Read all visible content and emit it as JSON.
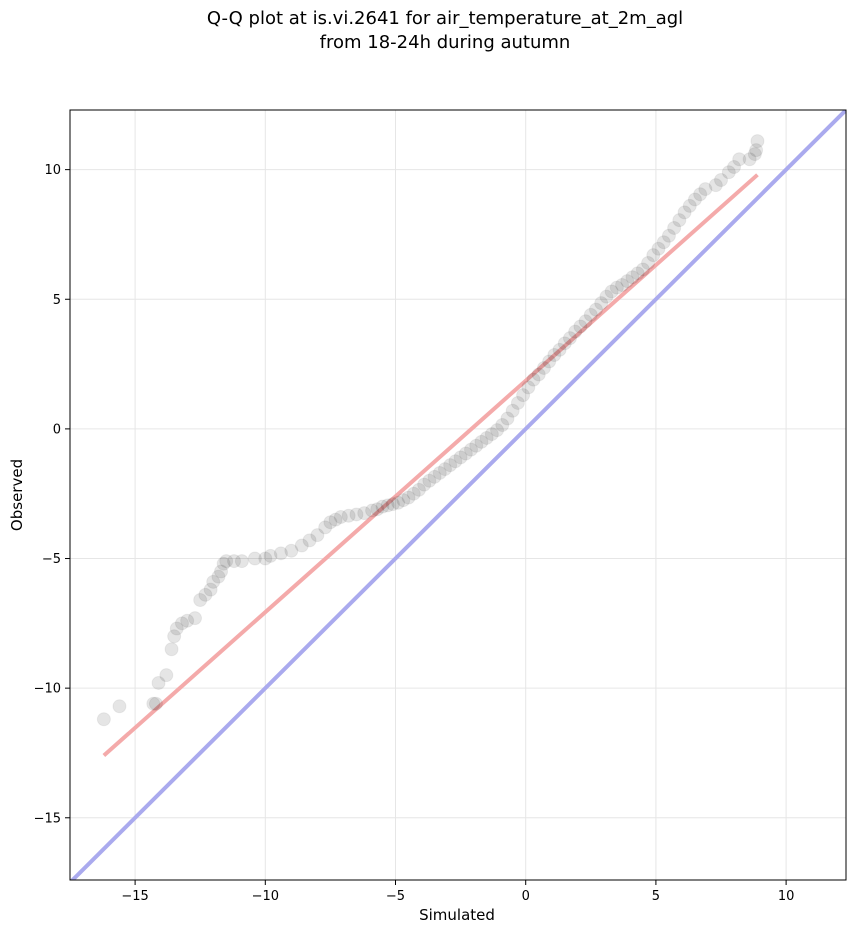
{
  "chart_data": {
    "type": "scatter",
    "title": "Q-Q plot at is.vi.2641 for air_temperature_at_2m_agl",
    "subtitle": "from 18-24h during autumn",
    "xlabel": "Simulated",
    "ylabel": "Observed",
    "xlim": [
      -17.5,
      12.3
    ],
    "ylim": [
      -17.4,
      12.3
    ],
    "xticks": [
      -15,
      -10,
      -5,
      0,
      5,
      10
    ],
    "xtick_labels": [
      "−15",
      "−10",
      "−5",
      "0",
      "5",
      "10"
    ],
    "yticks": [
      -15,
      -10,
      -5,
      0,
      5,
      10
    ],
    "ytick_labels": [
      "−15",
      "−10",
      "−5",
      "0",
      "5",
      "10"
    ],
    "grid": true,
    "point_color": "#000000",
    "point_alpha": 0.1,
    "quantile_points": [
      [
        -16.2,
        -11.2
      ],
      [
        -15.6,
        -10.7
      ],
      [
        -14.3,
        -10.6
      ],
      [
        -14.2,
        -10.6
      ],
      [
        -14.1,
        -9.8
      ],
      [
        -13.8,
        -9.5
      ],
      [
        -13.6,
        -8.5
      ],
      [
        -13.5,
        -8.0
      ],
      [
        -13.4,
        -7.7
      ],
      [
        -13.2,
        -7.5
      ],
      [
        -13.0,
        -7.4
      ],
      [
        -12.7,
        -7.3
      ],
      [
        -12.5,
        -6.6
      ],
      [
        -12.3,
        -6.4
      ],
      [
        -12.1,
        -6.2
      ],
      [
        -12.0,
        -5.9
      ],
      [
        -11.8,
        -5.7
      ],
      [
        -11.7,
        -5.5
      ],
      [
        -11.6,
        -5.2
      ],
      [
        -11.5,
        -5.1
      ],
      [
        -11.2,
        -5.1
      ],
      [
        -10.9,
        -5.1
      ],
      [
        -10.4,
        -5.0
      ],
      [
        -10.0,
        -5.0
      ],
      [
        -9.8,
        -4.9
      ],
      [
        -9.4,
        -4.8
      ],
      [
        -9.0,
        -4.7
      ],
      [
        -8.6,
        -4.5
      ],
      [
        -8.3,
        -4.3
      ],
      [
        -8.0,
        -4.1
      ],
      [
        -7.7,
        -3.8
      ],
      [
        -7.5,
        -3.6
      ],
      [
        -7.3,
        -3.5
      ],
      [
        -7.1,
        -3.4
      ],
      [
        -6.8,
        -3.35
      ],
      [
        -6.5,
        -3.3
      ],
      [
        -6.2,
        -3.25
      ],
      [
        -5.9,
        -3.15
      ],
      [
        -5.7,
        -3.1
      ],
      [
        -5.5,
        -3.0
      ],
      [
        -5.3,
        -2.95
      ],
      [
        -5.1,
        -2.9
      ],
      [
        -4.9,
        -2.85
      ],
      [
        -4.7,
        -2.75
      ],
      [
        -4.5,
        -2.65
      ],
      [
        -4.3,
        -2.5
      ],
      [
        -4.1,
        -2.35
      ],
      [
        -3.9,
        -2.15
      ],
      [
        -3.7,
        -2.0
      ],
      [
        -3.5,
        -1.85
      ],
      [
        -3.3,
        -1.7
      ],
      [
        -3.1,
        -1.55
      ],
      [
        -2.9,
        -1.4
      ],
      [
        -2.7,
        -1.25
      ],
      [
        -2.5,
        -1.1
      ],
      [
        -2.3,
        -0.95
      ],
      [
        -2.1,
        -0.8
      ],
      [
        -1.9,
        -0.65
      ],
      [
        -1.7,
        -0.5
      ],
      [
        -1.5,
        -0.35
      ],
      [
        -1.3,
        -0.2
      ],
      [
        -1.1,
        -0.05
      ],
      [
        -0.9,
        0.15
      ],
      [
        -0.7,
        0.4
      ],
      [
        -0.5,
        0.7
      ],
      [
        -0.3,
        1.0
      ],
      [
        -0.1,
        1.3
      ],
      [
        0.1,
        1.6
      ],
      [
        0.3,
        1.9
      ],
      [
        0.5,
        2.1
      ],
      [
        0.7,
        2.35
      ],
      [
        0.9,
        2.6
      ],
      [
        1.1,
        2.85
      ],
      [
        1.3,
        3.05
      ],
      [
        1.5,
        3.3
      ],
      [
        1.7,
        3.5
      ],
      [
        1.9,
        3.75
      ],
      [
        2.1,
        3.95
      ],
      [
        2.3,
        4.15
      ],
      [
        2.5,
        4.4
      ],
      [
        2.7,
        4.6
      ],
      [
        2.9,
        4.85
      ],
      [
        3.1,
        5.1
      ],
      [
        3.3,
        5.3
      ],
      [
        3.5,
        5.45
      ],
      [
        3.7,
        5.55
      ],
      [
        3.9,
        5.7
      ],
      [
        4.1,
        5.85
      ],
      [
        4.3,
        6.0
      ],
      [
        4.5,
        6.15
      ],
      [
        4.7,
        6.4
      ],
      [
        4.9,
        6.7
      ],
      [
        5.1,
        6.95
      ],
      [
        5.3,
        7.2
      ],
      [
        5.5,
        7.45
      ],
      [
        5.7,
        7.75
      ],
      [
        5.9,
        8.05
      ],
      [
        6.1,
        8.35
      ],
      [
        6.3,
        8.6
      ],
      [
        6.5,
        8.85
      ],
      [
        6.7,
        9.05
      ],
      [
        6.9,
        9.25
      ],
      [
        7.3,
        9.4
      ],
      [
        7.5,
        9.6
      ],
      [
        7.8,
        9.9
      ],
      [
        8.0,
        10.1
      ],
      [
        8.2,
        10.4
      ],
      [
        8.6,
        10.4
      ],
      [
        8.8,
        10.6
      ],
      [
        8.85,
        10.75
      ],
      [
        8.9,
        11.1
      ]
    ],
    "reference_lines": [
      {
        "color": "#aaaaee",
        "alpha": 1.0,
        "x": [
          -17.5,
          12.3
        ],
        "y": [
          -17.5,
          12.3
        ]
      },
      {
        "color": "#f4aaaa",
        "alpha": 1.0,
        "x": [
          -16.2,
          8.9
        ],
        "y": [
          -12.6,
          9.8
        ]
      }
    ]
  }
}
